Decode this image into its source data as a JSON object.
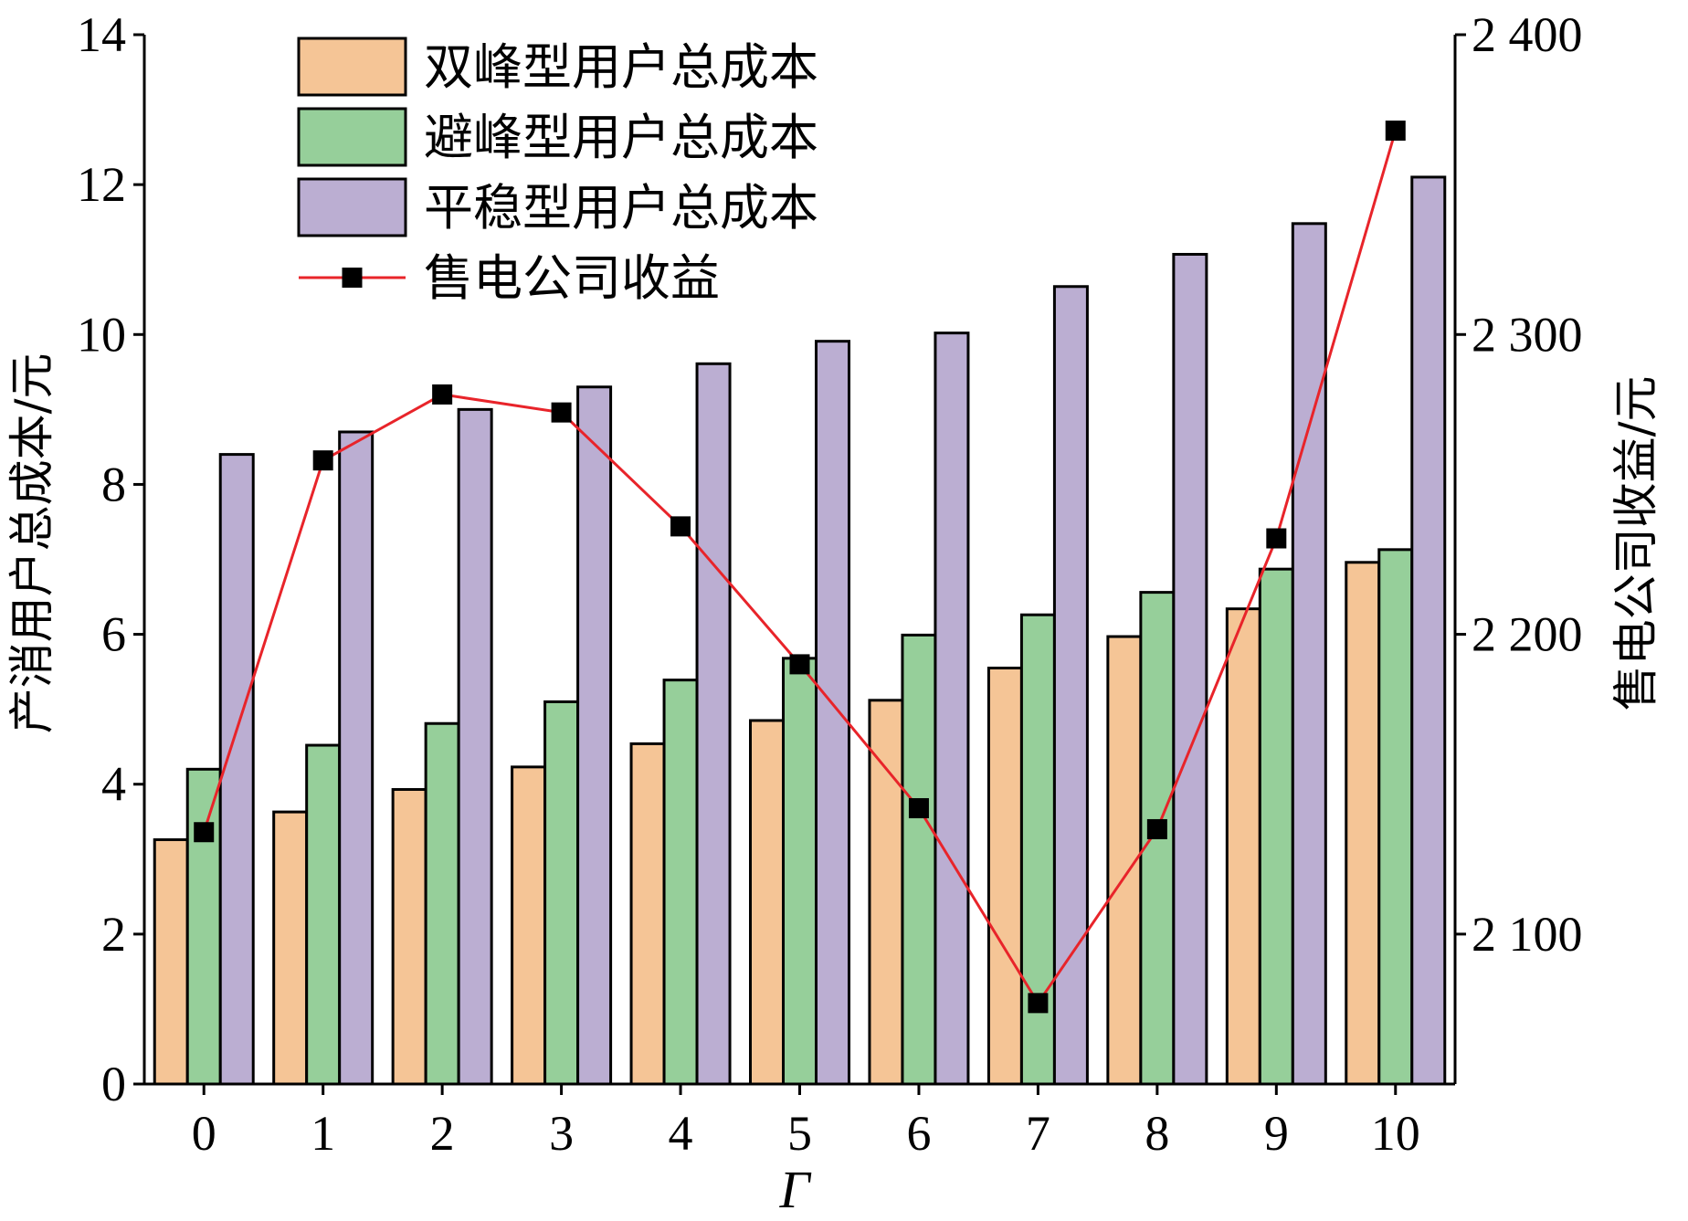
{
  "chart_data": {
    "type": "bar",
    "categories": [
      "0",
      "1",
      "2",
      "3",
      "4",
      "5",
      "6",
      "7",
      "8",
      "9",
      "10"
    ],
    "series": [
      {
        "name": "双峰型用户总成本",
        "type": "bar",
        "axis": "left",
        "color": "#F5C596",
        "values": [
          3.26,
          3.63,
          3.93,
          4.23,
          4.54,
          4.85,
          5.12,
          5.55,
          5.97,
          6.34,
          6.96
        ]
      },
      {
        "name": "避峰型用户总成本",
        "type": "bar",
        "axis": "left",
        "color": "#96CF9A",
        "values": [
          4.2,
          4.52,
          4.81,
          5.1,
          5.39,
          5.68,
          5.99,
          6.26,
          6.56,
          6.87,
          7.13
        ]
      },
      {
        "name": "平稳型用户总成本",
        "type": "bar",
        "axis": "left",
        "color": "#BBAED2",
        "values": [
          8.4,
          8.7,
          9.0,
          9.3,
          9.61,
          9.91,
          10.02,
          10.64,
          11.07,
          11.48,
          12.1
        ]
      },
      {
        "name": "售电公司收益",
        "type": "line",
        "axis": "right",
        "color": "#E8242A",
        "marker": "square",
        "marker_color": "#000000",
        "values": [
          2134,
          2258,
          2280,
          2274,
          2236,
          2190,
          2142,
          2077,
          2135,
          2232,
          2368
        ]
      }
    ],
    "xlabel": "Γ",
    "ylabel": "产消用户总成本/元",
    "ylabel_right": "售电公司收益/元",
    "ylim": [
      0,
      14
    ],
    "ylim_right": [
      2050,
      2400
    ],
    "yticks": [
      0,
      2,
      4,
      6,
      8,
      10,
      12,
      14
    ],
    "yticks_right": [
      2100,
      2200,
      2300,
      2400
    ],
    "ytick_labels_right": [
      "2 100",
      "2 200",
      "2 300",
      "2 400"
    ],
    "grid": false,
    "legend_position": "top-left"
  }
}
